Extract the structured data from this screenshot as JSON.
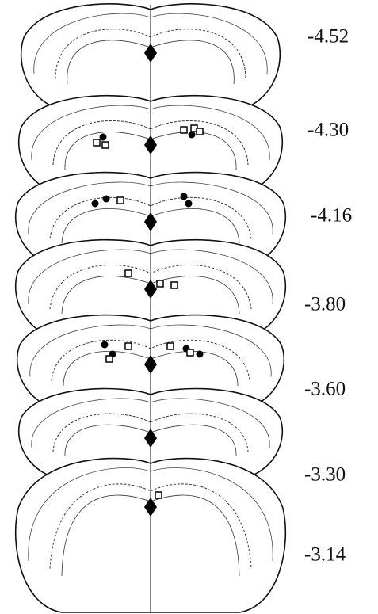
{
  "sections": [
    {
      "label": "-4.52"
    },
    {
      "label": "-4.30"
    },
    {
      "label": "-4.16"
    },
    {
      "label": "-3.80"
    },
    {
      "label": "-3.60"
    },
    {
      "label": "-3.30"
    },
    {
      "label": "-3.14"
    }
  ]
}
